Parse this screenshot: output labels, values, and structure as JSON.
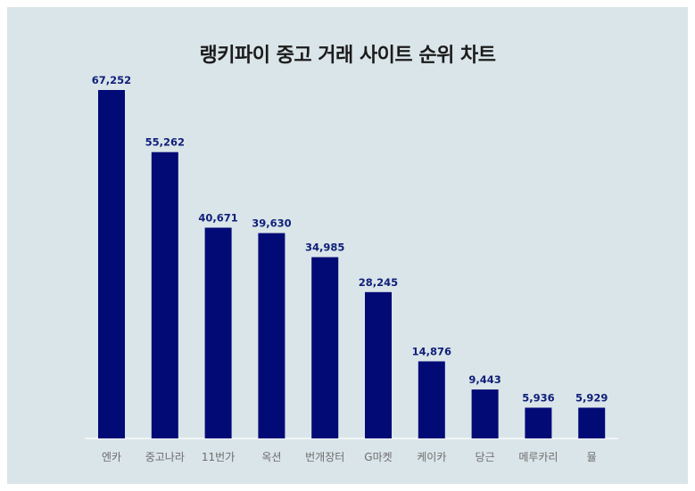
{
  "chart_data": {
    "type": "bar",
    "title": "랭키파이 중고 거래 사이트 순위 차트",
    "xlabel": "",
    "ylabel": "",
    "categories": [
      "엔카",
      "중고나라",
      "11번가",
      "옥션",
      "번개장터",
      "G마켓",
      "케이카",
      "당근",
      "메루카리",
      "뮬"
    ],
    "values": [
      67252,
      55262,
      40671,
      39630,
      34985,
      28245,
      14876,
      9443,
      5936,
      5929
    ],
    "value_labels": [
      "67,252",
      "55,262",
      "40,671",
      "39,630",
      "34,985",
      "28,245",
      "14,876",
      "9,443",
      "5,936",
      "5,929"
    ],
    "ylim": [
      0,
      67252
    ],
    "grid": false,
    "legend": "none",
    "colors": {
      "bar": "#020a76",
      "value_label": "#10207a",
      "category_label": "#6d6d6d",
      "background": "#dae5e9"
    }
  }
}
